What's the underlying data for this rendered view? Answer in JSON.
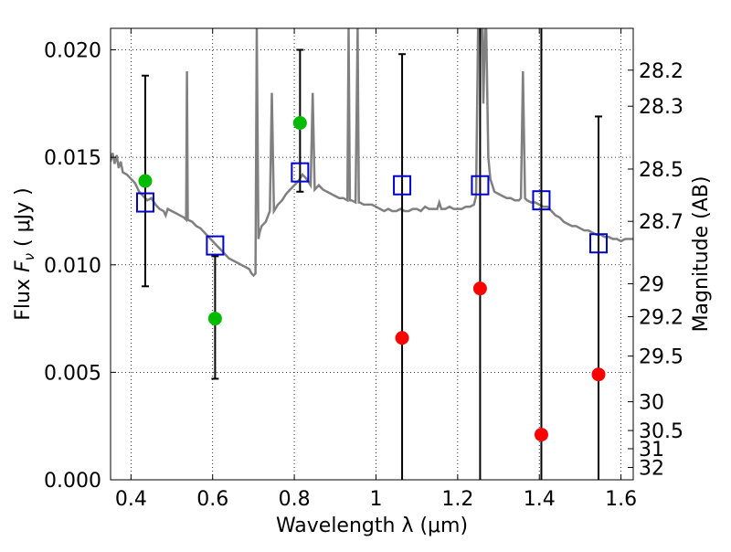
{
  "chart_data": {
    "type": "scatter",
    "title": "",
    "xlabel": "Wavelength  λ (μm)",
    "ylabel_parts": {
      "prefix": "Flux  ",
      "symbol": "F",
      "subscript": "ν",
      "units": "  ( μJy )"
    },
    "ylabel_right": "Magnitude (AB)",
    "xlim": [
      0.35,
      1.63
    ],
    "ylim": [
      0.0,
      0.021
    ],
    "grid": true,
    "x_ticks": [
      {
        "value": 0.4,
        "label": "0.4"
      },
      {
        "value": 0.6,
        "label": "0.6"
      },
      {
        "value": 0.8,
        "label": "0.8"
      },
      {
        "value": 1.0,
        "label": "1"
      },
      {
        "value": 1.2,
        "label": "1.2"
      },
      {
        "value": 1.4,
        "label": "1.4"
      },
      {
        "value": 1.6,
        "label": "1.6"
      }
    ],
    "y_ticks": [
      {
        "value": 0.0,
        "label": "0.000"
      },
      {
        "value": 0.005,
        "label": "0.005"
      },
      {
        "value": 0.01,
        "label": "0.010"
      },
      {
        "value": 0.015,
        "label": "0.015"
      },
      {
        "value": 0.02,
        "label": "0.020"
      }
    ],
    "mag_ticks": [
      {
        "mag": 28.2,
        "label": "28.2"
      },
      {
        "mag": 28.3,
        "label": "28.3"
      },
      {
        "mag": 28.5,
        "label": "28.5"
      },
      {
        "mag": 28.7,
        "label": "28.7"
      },
      {
        "mag": 29.0,
        "label": "29"
      },
      {
        "mag": 29.2,
        "label": "29.2"
      },
      {
        "mag": 29.5,
        "label": "29.5"
      },
      {
        "mag": 30.0,
        "label": "30"
      },
      {
        "mag": 30.5,
        "label": "30.5"
      },
      {
        "mag": 31.0,
        "label": "31"
      },
      {
        "mag": 32.0,
        "label": "32"
      }
    ],
    "series": [
      {
        "kind": "model_spectrum",
        "color": "#808080",
        "points": [
          [
            0.35,
            0.0148
          ],
          [
            0.355,
            0.0152
          ],
          [
            0.36,
            0.0147
          ],
          [
            0.365,
            0.0151
          ],
          [
            0.37,
            0.0145
          ],
          [
            0.375,
            0.0148
          ],
          [
            0.38,
            0.0143
          ],
          [
            0.39,
            0.0142
          ],
          [
            0.4,
            0.014
          ],
          [
            0.41,
            0.0138
          ],
          [
            0.42,
            0.0134
          ],
          [
            0.43,
            0.0132
          ],
          [
            0.44,
            0.013
          ],
          [
            0.45,
            0.0131
          ],
          [
            0.46,
            0.0128
          ],
          [
            0.47,
            0.0126
          ],
          [
            0.48,
            0.0125
          ],
          [
            0.485,
            0.0123
          ],
          [
            0.49,
            0.0126
          ],
          [
            0.5,
            0.0125
          ],
          [
            0.51,
            0.0124
          ],
          [
            0.52,
            0.0123
          ],
          [
            0.53,
            0.0122
          ],
          [
            0.535,
            0.0121
          ],
          [
            0.537,
            0.019
          ],
          [
            0.539,
            0.0121
          ],
          [
            0.55,
            0.012
          ],
          [
            0.56,
            0.0118
          ],
          [
            0.57,
            0.0117
          ],
          [
            0.58,
            0.0115
          ],
          [
            0.59,
            0.0113
          ],
          [
            0.6,
            0.0111
          ],
          [
            0.61,
            0.0109
          ],
          [
            0.62,
            0.0107
          ],
          [
            0.63,
            0.0105
          ],
          [
            0.64,
            0.0103
          ],
          [
            0.65,
            0.0102
          ],
          [
            0.66,
            0.0101
          ],
          [
            0.67,
            0.01
          ],
          [
            0.68,
            0.0099
          ],
          [
            0.69,
            0.0098
          ],
          [
            0.695,
            0.0096
          ],
          [
            0.7,
            0.0095
          ],
          [
            0.705,
            0.0096
          ],
          [
            0.708,
            0.021
          ],
          [
            0.712,
            0.0112
          ],
          [
            0.715,
            0.0115
          ],
          [
            0.72,
            0.0118
          ],
          [
            0.73,
            0.012
          ],
          [
            0.74,
            0.0125
          ],
          [
            0.745,
            0.018
          ],
          [
            0.75,
            0.0125
          ],
          [
            0.76,
            0.0128
          ],
          [
            0.77,
            0.013
          ],
          [
            0.78,
            0.0133
          ],
          [
            0.79,
            0.0135
          ],
          [
            0.8,
            0.0137
          ],
          [
            0.81,
            0.0139
          ],
          [
            0.82,
            0.0142
          ],
          [
            0.83,
            0.014
          ],
          [
            0.84,
            0.0137
          ],
          [
            0.845,
            0.018
          ],
          [
            0.85,
            0.0135
          ],
          [
            0.86,
            0.0137
          ],
          [
            0.87,
            0.0135
          ],
          [
            0.88,
            0.0134
          ],
          [
            0.89,
            0.0133
          ],
          [
            0.9,
            0.0132
          ],
          [
            0.91,
            0.0131
          ],
          [
            0.92,
            0.0131
          ],
          [
            0.93,
            0.013
          ],
          [
            0.933,
            0.021
          ],
          [
            0.936,
            0.013
          ],
          [
            0.94,
            0.013
          ],
          [
            0.95,
            0.0129
          ],
          [
            0.955,
            0.021
          ],
          [
            0.958,
            0.0129
          ],
          [
            0.96,
            0.0129
          ],
          [
            0.97,
            0.0128
          ],
          [
            0.98,
            0.0128
          ],
          [
            0.99,
            0.0128
          ],
          [
            1.0,
            0.0127
          ],
          [
            1.01,
            0.0126
          ],
          [
            1.02,
            0.0125
          ],
          [
            1.03,
            0.0126
          ],
          [
            1.04,
            0.0125
          ],
          [
            1.05,
            0.0125
          ],
          [
            1.06,
            0.0126
          ],
          [
            1.07,
            0.0125
          ],
          [
            1.08,
            0.0125
          ],
          [
            1.09,
            0.0126
          ],
          [
            1.1,
            0.0126
          ],
          [
            1.11,
            0.0125
          ],
          [
            1.12,
            0.0127
          ],
          [
            1.13,
            0.0126
          ],
          [
            1.14,
            0.0126
          ],
          [
            1.15,
            0.0126
          ],
          [
            1.155,
            0.0129
          ],
          [
            1.16,
            0.0126
          ],
          [
            1.17,
            0.0126
          ],
          [
            1.18,
            0.0127
          ],
          [
            1.19,
            0.0126
          ],
          [
            1.2,
            0.0126
          ],
          [
            1.21,
            0.0126
          ],
          [
            1.22,
            0.0127
          ],
          [
            1.23,
            0.0127
          ],
          [
            1.24,
            0.0128
          ],
          [
            1.245,
            0.0132
          ],
          [
            1.25,
            0.021
          ],
          [
            1.255,
            0.021
          ],
          [
            1.26,
            0.021
          ],
          [
            1.263,
            0.0175
          ],
          [
            1.267,
            0.021
          ],
          [
            1.27,
            0.021
          ],
          [
            1.275,
            0.015
          ],
          [
            1.28,
            0.014
          ],
          [
            1.29,
            0.0134
          ],
          [
            1.3,
            0.0133
          ],
          [
            1.31,
            0.0132
          ],
          [
            1.32,
            0.0131
          ],
          [
            1.33,
            0.0131
          ],
          [
            1.34,
            0.013
          ],
          [
            1.35,
            0.013
          ],
          [
            1.355,
            0.0131
          ],
          [
            1.36,
            0.019
          ],
          [
            1.365,
            0.0131
          ],
          [
            1.37,
            0.013
          ],
          [
            1.38,
            0.0129
          ],
          [
            1.39,
            0.0129
          ],
          [
            1.4,
            0.0128
          ],
          [
            1.41,
            0.0127
          ],
          [
            1.42,
            0.0127
          ],
          [
            1.43,
            0.0125
          ],
          [
            1.44,
            0.0123
          ],
          [
            1.45,
            0.0122
          ],
          [
            1.46,
            0.012
          ],
          [
            1.47,
            0.0119
          ],
          [
            1.48,
            0.0118
          ],
          [
            1.49,
            0.0118
          ],
          [
            1.5,
            0.0117
          ],
          [
            1.51,
            0.0116
          ],
          [
            1.52,
            0.0116
          ],
          [
            1.53,
            0.0115
          ],
          [
            1.54,
            0.0114
          ],
          [
            1.55,
            0.0114
          ],
          [
            1.56,
            0.0113
          ],
          [
            1.57,
            0.0113
          ],
          [
            1.58,
            0.0112
          ],
          [
            1.59,
            0.0112
          ],
          [
            1.6,
            0.0111
          ],
          [
            1.61,
            0.0112
          ],
          [
            1.62,
            0.0112
          ],
          [
            1.63,
            0.0112
          ]
        ]
      },
      {
        "kind": "model_photometry",
        "marker": "open-square",
        "color": "#0000cc",
        "points": [
          {
            "x": 0.435,
            "y": 0.0129
          },
          {
            "x": 0.606,
            "y": 0.0109
          },
          {
            "x": 0.814,
            "y": 0.0143
          },
          {
            "x": 1.064,
            "y": 0.0137
          },
          {
            "x": 1.255,
            "y": 0.0137
          },
          {
            "x": 1.405,
            "y": 0.013
          },
          {
            "x": 1.545,
            "y": 0.011
          }
        ]
      },
      {
        "kind": "detections",
        "marker": "filled-circle",
        "color": "#00bb00",
        "points": [
          {
            "x": 0.435,
            "y": 0.0139,
            "ylow": 0.009,
            "yhigh": 0.0188
          },
          {
            "x": 0.606,
            "y": 0.0075,
            "ylow": 0.0047,
            "yhigh": 0.0104
          },
          {
            "x": 0.814,
            "y": 0.0166,
            "ylow": 0.0134,
            "yhigh": 0.02
          }
        ]
      },
      {
        "kind": "non_detections",
        "marker": "filled-circle",
        "color": "#ff0000",
        "points": [
          {
            "x": 1.064,
            "y": 0.0066,
            "ylow": 0.0,
            "yhigh": 0.0198
          },
          {
            "x": 1.255,
            "y": 0.0089,
            "ylow": 0.0,
            "yhigh": 0.021
          },
          {
            "x": 1.405,
            "y": 0.0021,
            "ylow": 0.0,
            "yhigh": 0.021
          },
          {
            "x": 1.545,
            "y": 0.0049,
            "ylow": 0.0,
            "yhigh": 0.0169
          }
        ]
      }
    ]
  }
}
